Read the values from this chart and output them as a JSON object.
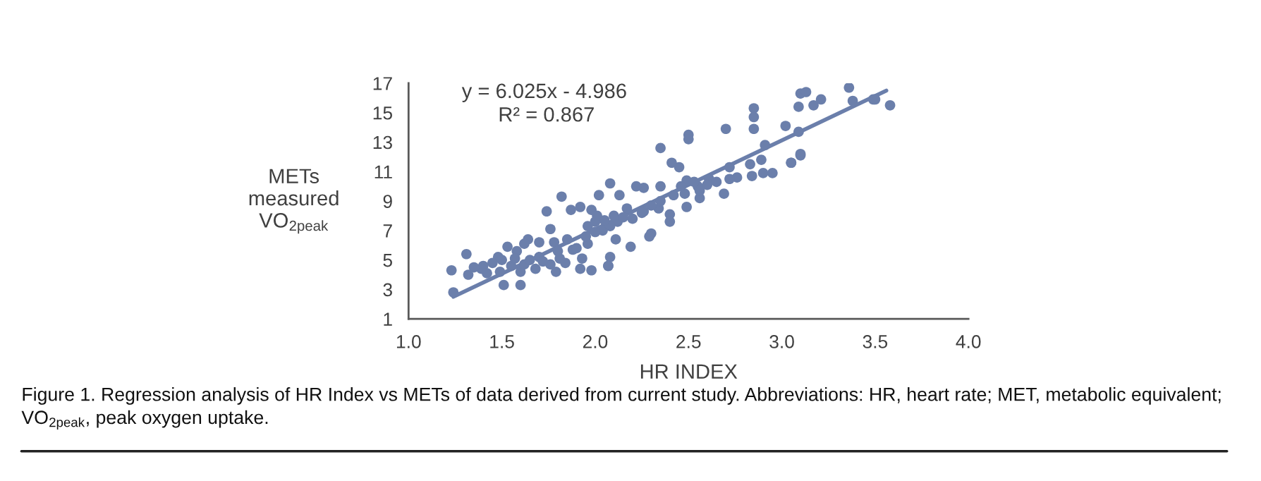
{
  "chart_data": {
    "type": "scatter",
    "xlabel": "HR INDEX",
    "ylabel": "METs\nmeasured\nVO$_{2peak}$",
    "xlim": [
      1.0,
      4.0
    ],
    "xticks": [
      {
        "value": 1.0,
        "label": "1.0"
      },
      {
        "value": 1.5,
        "label": "1.5"
      },
      {
        "value": 2.0,
        "label": "2.0"
      },
      {
        "value": 2.5,
        "label": "2.5"
      },
      {
        "value": 3.0,
        "label": "3.0"
      },
      {
        "value": 3.5,
        "label": "3.5"
      },
      {
        "value": 4.0,
        "label": "4.0"
      }
    ],
    "ylim": [
      1,
      17
    ],
    "yticks": [
      1,
      3,
      5,
      7,
      9,
      11,
      13,
      15,
      17
    ],
    "grid": false,
    "marker": "circle",
    "series": [
      {
        "color": "#6b7fab",
        "x": [
          3.1,
          3.13,
          3.36,
          3.38,
          3.49,
          3.58,
          3.5,
          3.17,
          3.21,
          3.09,
          2.85,
          2.85,
          2.7,
          2.85,
          3.02,
          3.1,
          3.05,
          3.09,
          2.5,
          2.5,
          2.35,
          2.41,
          2.45,
          2.91,
          2.72,
          2.83,
          2.89,
          3.1,
          3.05,
          2.84,
          2.95,
          2.76,
          2.72,
          2.61,
          2.65,
          2.69,
          2.56,
          2.49,
          2.49,
          2.4,
          2.4,
          2.34,
          2.3,
          2.29,
          2.19,
          2.08,
          2.07,
          2.11,
          2.26,
          2.26,
          2.35,
          2.22,
          2.08,
          2.02,
          2.13,
          2.17,
          2.12,
          2.0,
          1.24,
          1.23,
          1.32,
          1.31,
          1.4,
          1.49,
          1.51,
          1.6,
          1.6,
          1.64,
          1.74,
          1.76,
          1.82,
          1.87,
          1.92,
          1.98,
          1.96,
          2.07,
          1.98,
          1.92,
          1.81,
          1.7,
          1.58,
          1.48,
          1.39,
          1.68,
          1.76,
          1.79,
          1.53,
          1.62,
          1.7,
          1.78,
          1.85,
          2.04,
          2.01,
          2.08,
          1.88,
          1.96,
          1.93,
          1.45,
          1.5,
          1.55,
          1.57,
          1.62,
          1.65,
          1.35,
          1.42,
          1.72,
          1.8,
          1.84,
          1.9,
          1.95,
          2.0,
          2.05,
          2.1,
          2.15,
          2.2,
          2.25,
          2.3,
          2.35,
          2.42,
          2.48,
          2.55,
          2.6,
          2.9,
          2.46,
          2.56,
          2.53
        ],
        "values": [
          16.3,
          16.4,
          16.7,
          15.8,
          15.9,
          15.5,
          15.9,
          15.5,
          15.9,
          15.4,
          15.3,
          14.7,
          13.9,
          13.9,
          14.1,
          12.1,
          11.6,
          13.7,
          13.5,
          13.2,
          12.6,
          11.6,
          11.3,
          12.8,
          11.3,
          11.5,
          11.8,
          12.2,
          11.6,
          10.7,
          10.9,
          10.6,
          10.5,
          10.5,
          10.3,
          9.5,
          9.2,
          10.4,
          8.6,
          8.1,
          7.6,
          8.5,
          6.8,
          6.6,
          5.9,
          5.2,
          4.6,
          6.4,
          8.3,
          9.9,
          10.0,
          10.0,
          10.2,
          9.4,
          9.4,
          8.5,
          7.6,
          7.6,
          2.8,
          4.3,
          4.0,
          5.4,
          4.6,
          4.2,
          3.3,
          3.3,
          4.2,
          6.4,
          8.3,
          7.1,
          9.3,
          8.4,
          8.6,
          8.4,
          7.3,
          4.6,
          4.3,
          4.4,
          5.1,
          5.2,
          5.6,
          5.2,
          4.4,
          4.4,
          4.7,
          4.2,
          5.9,
          6.1,
          6.2,
          6.2,
          6.4,
          7.0,
          8.0,
          7.3,
          5.7,
          6.1,
          5.1,
          4.8,
          5.0,
          4.6,
          5.1,
          4.7,
          5.0,
          4.5,
          4.1,
          4.9,
          5.6,
          4.8,
          5.8,
          6.6,
          6.9,
          7.7,
          8.0,
          7.9,
          7.8,
          8.2,
          8.7,
          9.0,
          9.4,
          9.5,
          10.0,
          10.1,
          10.9,
          10.0,
          9.7,
          10.3
        ]
      },
      {
        "type": "line",
        "color": "#6b7fab",
        "marker": "none",
        "x": [
          1.24,
          3.56
        ],
        "values": [
          2.5,
          16.5
        ]
      }
    ],
    "annotations": [
      "y = 6.025x - 4.986",
      "R² = 0.867",
      "Figure 1. Regression analysis of HR Index vs METs of data derived from current study. Abbreviations: HR, heart rate; MET, metabolic equivalent; VO$_{2peak}$, peak oxygen uptake."
    ]
  }
}
